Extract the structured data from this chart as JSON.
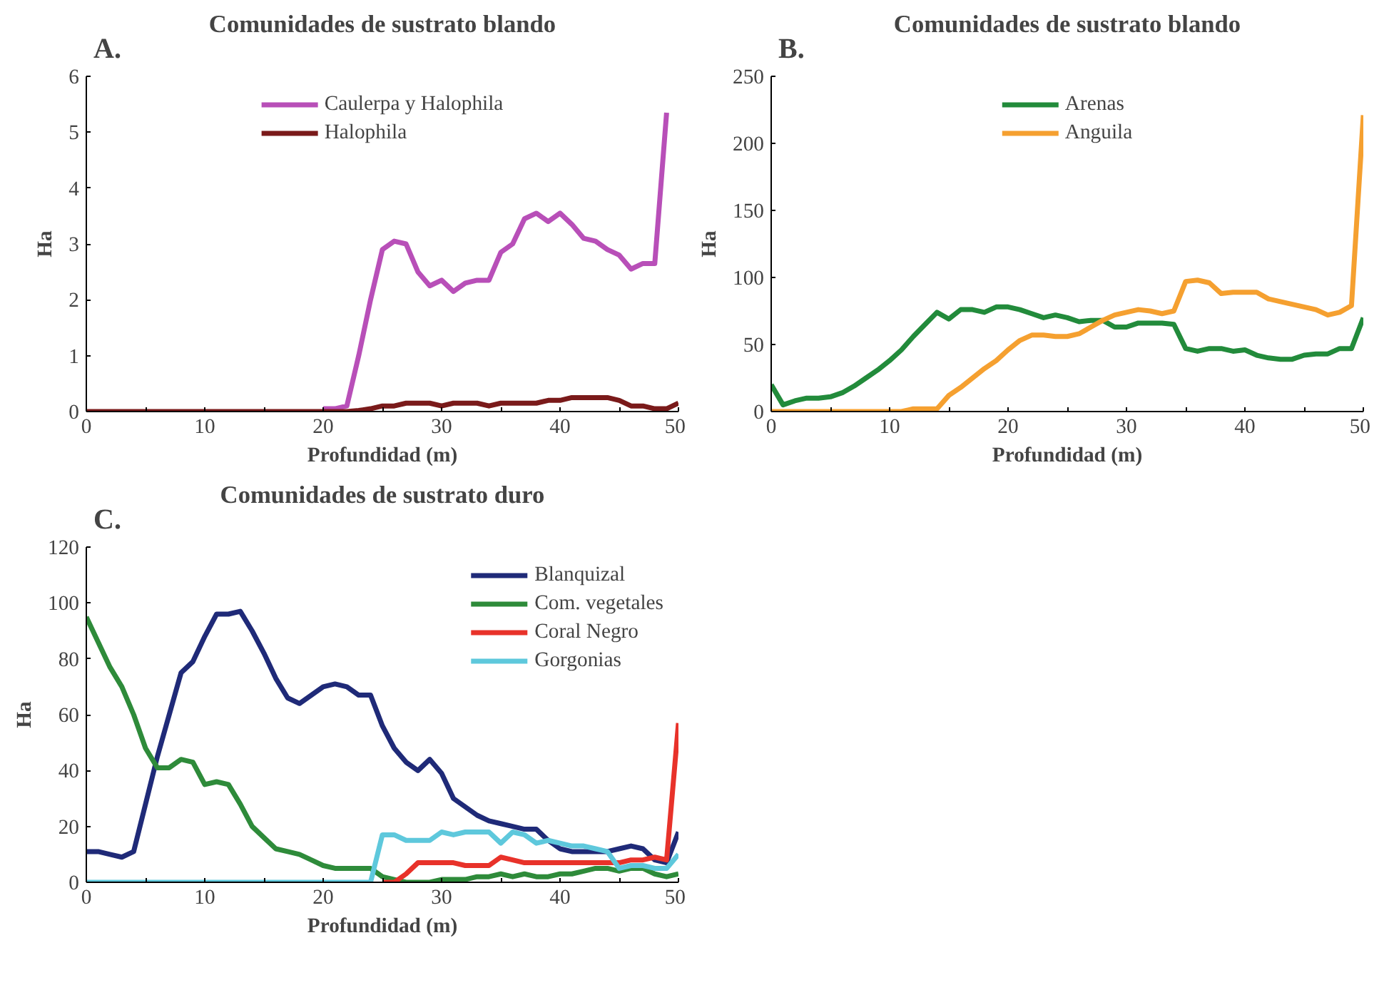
{
  "chart_data": [
    {
      "type": "line",
      "title": "Comunidades de sustrato blando",
      "annotations": [
        "A."
      ],
      "xlabel": "Profundidad (m)",
      "ylabel": "Ha",
      "x": [
        0,
        1,
        2,
        3,
        4,
        5,
        6,
        7,
        8,
        9,
        10,
        11,
        12,
        13,
        14,
        15,
        16,
        17,
        18,
        19,
        20,
        21,
        22,
        23,
        24,
        25,
        26,
        27,
        28,
        29,
        30,
        31,
        32,
        33,
        34,
        35,
        36,
        37,
        38,
        39,
        40,
        41,
        42,
        43,
        44,
        45,
        46,
        47,
        48,
        49,
        50
      ],
      "xlim": [
        0,
        50
      ],
      "xticks": [
        0,
        {
          "value": 5,
          "label": null
        },
        10,
        {
          "value": 15,
          "label": null
        },
        20,
        {
          "value": 25,
          "label": null
        },
        30,
        {
          "value": 35,
          "label": null
        },
        40,
        {
          "value": 45,
          "label": null
        },
        50
      ],
      "ylim": [
        0,
        6
      ],
      "yticks": [
        0,
        1,
        2,
        3,
        4,
        5,
        6
      ],
      "grid": false,
      "legend": "top",
      "line_style": "solid",
      "marker": "none",
      "series": [
        {
          "name": "Caulerpa y Halophila",
          "color": "#b84fb8",
          "values": [
            null,
            null,
            null,
            null,
            null,
            null,
            null,
            null,
            null,
            null,
            null,
            null,
            null,
            null,
            null,
            null,
            null,
            null,
            null,
            null,
            0.05,
            0.05,
            0.1,
            1.0,
            2.0,
            2.9,
            3.05,
            3.0,
            2.5,
            2.25,
            2.35,
            2.15,
            2.3,
            2.35,
            2.35,
            2.85,
            3.0,
            3.45,
            3.55,
            3.4,
            3.55,
            3.35,
            3.1,
            3.05,
            2.9,
            2.8,
            2.55,
            2.65,
            2.65,
            5.35,
            null
          ]
        },
        {
          "name": "Halophila",
          "color": "#7a1a1a",
          "values": [
            0,
            0,
            0,
            0,
            0,
            0,
            0,
            0,
            0,
            0,
            0,
            0,
            0,
            0,
            0,
            0,
            0,
            0,
            0,
            0,
            0,
            0,
            0,
            0.02,
            0.05,
            0.1,
            0.1,
            0.15,
            0.15,
            0.15,
            0.1,
            0.15,
            0.15,
            0.15,
            0.1,
            0.15,
            0.15,
            0.15,
            0.15,
            0.2,
            0.2,
            0.25,
            0.25,
            0.25,
            0.25,
            0.2,
            0.1,
            0.1,
            0.05,
            0.05,
            0.15
          ]
        }
      ]
    },
    {
      "type": "line",
      "title": "Comunidades de sustrato blando",
      "annotations": [
        "B."
      ],
      "xlabel": "Profundidad (m)",
      "ylabel": "Ha",
      "x": [
        0,
        1,
        2,
        3,
        4,
        5,
        6,
        7,
        8,
        9,
        10,
        11,
        12,
        13,
        14,
        15,
        16,
        17,
        18,
        19,
        20,
        21,
        22,
        23,
        24,
        25,
        26,
        27,
        28,
        29,
        30,
        31,
        32,
        33,
        34,
        35,
        36,
        37,
        38,
        39,
        40,
        41,
        42,
        43,
        44,
        45,
        46,
        47,
        48,
        49,
        50
      ],
      "xlim": [
        0,
        50
      ],
      "xticks": [
        0,
        {
          "value": 5,
          "label": null
        },
        10,
        {
          "value": 15,
          "label": null
        },
        20,
        {
          "value": 25,
          "label": null
        },
        30,
        {
          "value": 35,
          "label": null
        },
        40,
        {
          "value": 45,
          "label": null
        },
        50
      ],
      "ylim": [
        0,
        250
      ],
      "yticks": [
        0,
        50,
        100,
        150,
        200,
        250
      ],
      "grid": false,
      "legend": "top",
      "line_style": "solid",
      "marker": "none",
      "series": [
        {
          "name": "Arenas",
          "color": "#228b3b",
          "values": [
            20,
            5,
            8,
            10,
            10,
            11,
            14,
            19,
            25,
            31,
            38,
            46,
            56,
            65,
            74,
            69,
            76,
            76,
            74,
            78,
            78,
            76,
            73,
            70,
            72,
            70,
            67,
            68,
            68,
            63,
            63,
            66,
            66,
            66,
            65,
            47,
            45,
            47,
            47,
            45,
            46,
            42,
            40,
            39,
            39,
            42,
            43,
            43,
            47,
            47,
            70
          ]
        },
        {
          "name": "Anguila",
          "color": "#f5a030",
          "values": [
            0,
            0,
            0,
            0,
            0,
            0,
            0,
            0,
            0,
            0,
            0,
            0,
            2,
            2,
            2,
            12,
            18,
            25,
            32,
            38,
            46,
            53,
            57,
            57,
            56,
            56,
            58,
            63,
            68,
            72,
            74,
            76,
            75,
            73,
            75,
            97,
            98,
            96,
            88,
            89,
            89,
            89,
            84,
            82,
            80,
            78,
            76,
            72,
            74,
            79,
            221
          ]
        }
      ]
    },
    {
      "type": "line",
      "title": "Comunidades de sustrato duro",
      "annotations": [
        "C."
      ],
      "xlabel": "Profundidad (m)",
      "ylabel": "Ha",
      "x": [
        0,
        1,
        2,
        3,
        4,
        5,
        6,
        7,
        8,
        9,
        10,
        11,
        12,
        13,
        14,
        15,
        16,
        17,
        18,
        19,
        20,
        21,
        22,
        23,
        24,
        25,
        26,
        27,
        28,
        29,
        30,
        31,
        32,
        33,
        34,
        35,
        36,
        37,
        38,
        39,
        40,
        41,
        42,
        43,
        44,
        45,
        46,
        47,
        48,
        49,
        50
      ],
      "xlim": [
        0,
        50
      ],
      "xticks": [
        0,
        {
          "value": 5,
          "label": null
        },
        10,
        {
          "value": 15,
          "label": null
        },
        20,
        {
          "value": 25,
          "label": null
        },
        30,
        {
          "value": 35,
          "label": null
        },
        40,
        {
          "value": 45,
          "label": null
        },
        50
      ],
      "ylim": [
        0,
        120
      ],
      "yticks": [
        0,
        20,
        40,
        60,
        80,
        100,
        120
      ],
      "grid": false,
      "legend": "top right",
      "line_style": "solid",
      "marker": "none",
      "series": [
        {
          "name": "Blanquizal",
          "color": "#1f2a78",
          "values": [
            11,
            11,
            10,
            9,
            11,
            28,
            45,
            60,
            75,
            79,
            88,
            96,
            96,
            97,
            90,
            82,
            73,
            66,
            64,
            67,
            70,
            71,
            70,
            67,
            67,
            56,
            48,
            43,
            40,
            44,
            39,
            30,
            27,
            24,
            22,
            21,
            20,
            19,
            19,
            15,
            12,
            11,
            11,
            11,
            11,
            12,
            13,
            12,
            8,
            7,
            18
          ]
        },
        {
          "name": "Com. vegetales",
          "color": "#2e8b3a",
          "values": [
            95,
            86,
            77,
            70,
            60,
            48,
            41,
            41,
            44,
            43,
            35,
            36,
            35,
            28,
            20,
            16,
            12,
            11,
            10,
            8,
            6,
            5,
            5,
            5,
            5,
            2,
            1,
            0,
            0,
            0,
            1,
            1,
            1,
            2,
            2,
            3,
            2,
            3,
            2,
            2,
            3,
            3,
            4,
            5,
            5,
            4,
            5,
            5,
            3,
            2,
            3
          ]
        },
        {
          "name": "Coral Negro",
          "color": "#e8322a",
          "values": [
            null,
            null,
            null,
            null,
            null,
            null,
            null,
            null,
            null,
            null,
            null,
            null,
            null,
            null,
            null,
            null,
            null,
            null,
            null,
            null,
            null,
            null,
            null,
            null,
            null,
            0,
            0,
            3,
            7,
            7,
            7,
            7,
            6,
            6,
            6,
            9,
            8,
            7,
            7,
            7,
            7,
            7,
            7,
            7,
            7,
            7,
            8,
            8,
            9,
            8,
            57
          ]
        },
        {
          "name": "Gorgonias",
          "color": "#5ec8dc",
          "values": [
            0,
            0,
            0,
            0,
            0,
            0,
            0,
            0,
            0,
            0,
            0,
            0,
            0,
            0,
            0,
            0,
            0,
            0,
            0,
            0,
            0,
            0,
            0,
            0,
            0,
            17,
            17,
            15,
            15,
            15,
            18,
            17,
            18,
            18,
            18,
            14,
            18,
            17,
            14,
            15,
            14,
            13,
            13,
            12,
            11,
            5,
            6,
            6,
            5,
            5,
            10
          ]
        }
      ]
    }
  ]
}
